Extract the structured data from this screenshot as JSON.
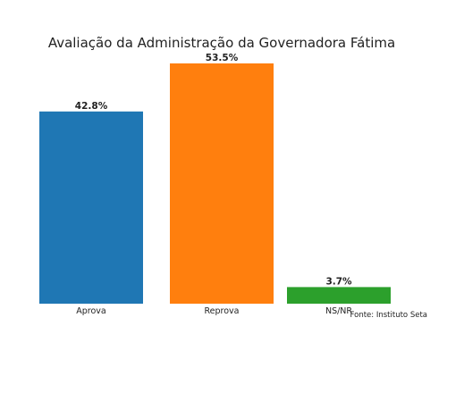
{
  "chart_data": {
    "type": "bar",
    "title": "Avaliação da Administração da Governadora Fátima",
    "categories": [
      "Aprova",
      "Reprova",
      "NS/NR"
    ],
    "values": [
      42.8,
      53.5,
      3.7
    ],
    "value_labels": [
      "42.8%",
      "53.5%",
      "3.7%"
    ],
    "colors": [
      "#1f77b4",
      "#ff7f0e",
      "#2ca02c"
    ],
    "ylim": [
      0,
      53.5
    ],
    "grid": false,
    "axes_visible": false,
    "source": "Fonte: Instituto Seta"
  }
}
